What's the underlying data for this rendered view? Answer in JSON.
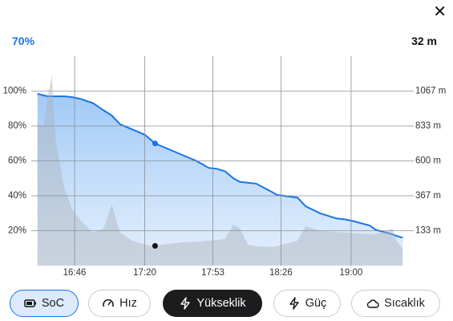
{
  "header": {
    "close": "✕",
    "readout_left": "70%",
    "readout_right": "32 m"
  },
  "chart_data": {
    "type": "area",
    "x": [
      988,
      991,
      993,
      995,
      997,
      1001,
      1005,
      1009,
      1015,
      1020,
      1024,
      1028,
      1034,
      1040,
      1045,
      1048,
      1059,
      1065,
      1071,
      1075,
      1079,
      1083,
      1086,
      1090,
      1094,
      1102,
      1104,
      1114,
      1118,
      1125,
      1133,
      1137,
      1141,
      1149,
      1152,
      1160,
      1162,
      1165
    ],
    "series": [
      {
        "color": "#1a73e8",
        "values": [
          98.5,
          97.5,
          97,
          97,
          97,
          97,
          96.5,
          95.5,
          93,
          89,
          86,
          81,
          78,
          75,
          70,
          68.5,
          63,
          60,
          56,
          55.5,
          54,
          50,
          48,
          47.5,
          47,
          42,
          40.5,
          39,
          34,
          30,
          27,
          26.5,
          25.5,
          23,
          20.5,
          18,
          17,
          16
        ]
      },
      {
        "color": "#aab1bb",
        "axis": "y2",
        "values": [
          850,
          833,
          1038,
          1173,
          715,
          418,
          272,
          202,
          121,
          148,
          310,
          121,
          67,
          40,
          32,
          40,
          56,
          60,
          67,
          72,
          78,
          175,
          148,
          40,
          30,
          24,
          30,
          67,
          164,
          132,
          125,
          121,
          118,
          110,
          112,
          148,
          67,
          13
        ]
      }
    ],
    "xlim": [
      985,
      1168
    ],
    "xticks": [
      {
        "value": 1006,
        "label": "16:46"
      },
      {
        "value": 1040,
        "label": "17:20"
      },
      {
        "value": 1073,
        "label": "17:53"
      },
      {
        "value": 1106,
        "label": "18:26"
      },
      {
        "value": 1140,
        "label": "19:00"
      }
    ],
    "ylim": [
      0,
      120
    ],
    "yticks": [
      {
        "value": 20,
        "label": "20%"
      },
      {
        "value": 40,
        "label": "40%"
      },
      {
        "value": 60,
        "label": "60%"
      },
      {
        "value": 80,
        "label": "80%"
      },
      {
        "value": 100,
        "label": "100%"
      }
    ],
    "y2lim": [
      -100,
      1300
    ],
    "y2ticks": [
      {
        "value": 133,
        "label": "133 m"
      },
      {
        "value": 367,
        "label": "367 m"
      },
      {
        "value": 600,
        "label": "600 m"
      },
      {
        "value": 833,
        "label": "833 m"
      },
      {
        "value": 1067,
        "label": "1067 m"
      }
    ],
    "grid": true
  },
  "tabs": [
    "SoC",
    "Hız",
    "Yükseklik",
    "Güç",
    "Sıcaklık"
  ]
}
